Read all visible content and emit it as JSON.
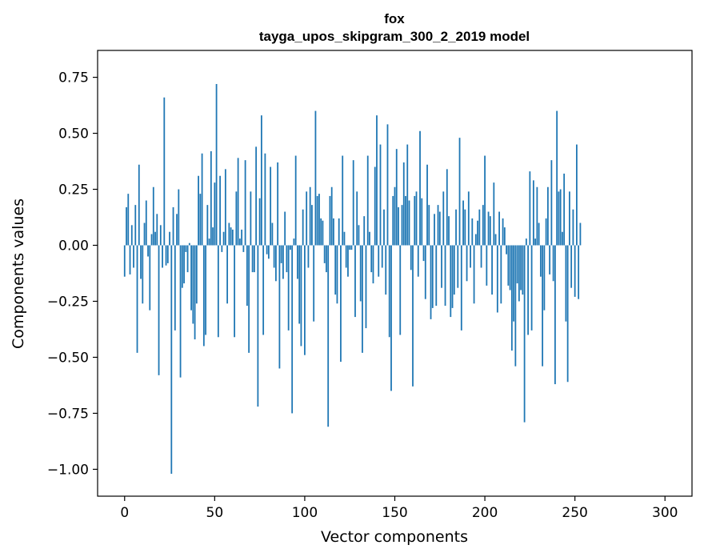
{
  "chart_data": {
    "type": "bar",
    "title": "fox",
    "subtitle": "tayga_upos_skipgram_300_2_2019 model",
    "xlabel": "Vector components",
    "ylabel": "Components values",
    "xlim": [
      -15,
      315
    ],
    "ylim": [
      -1.12,
      0.87
    ],
    "xticks": [
      0,
      50,
      100,
      150,
      200,
      250,
      300
    ],
    "xtick_labels": [
      "0",
      "50",
      "100",
      "150",
      "200",
      "250",
      "300"
    ],
    "yticks": [
      0.75,
      0.5,
      0.25,
      0.0,
      -0.25,
      -0.5,
      -0.75,
      -1.0
    ],
    "ytick_labels": [
      "0.75",
      "0.50",
      "0.25",
      "0.00",
      "−0.25",
      "−0.50",
      "−0.75",
      "−1.00"
    ],
    "bar_color": "#1f77b4",
    "grid": false,
    "values": [
      -0.14,
      0.17,
      0.23,
      -0.13,
      0.09,
      -0.1,
      0.18,
      -0.48,
      0.36,
      -0.15,
      -0.26,
      0.1,
      0.2,
      -0.05,
      -0.29,
      0.05,
      0.26,
      0.06,
      0.14,
      -0.58,
      0.09,
      -0.1,
      0.66,
      -0.09,
      -0.08,
      0.06,
      -1.02,
      0.17,
      -0.38,
      0.14,
      0.25,
      -0.59,
      -0.19,
      -0.17,
      -0.03,
      -0.12,
      0.01,
      -0.29,
      -0.35,
      -0.42,
      -0.26,
      0.31,
      0.23,
      0.41,
      -0.45,
      -0.4,
      0.18,
      0.03,
      0.42,
      0.08,
      0.28,
      0.72,
      -0.41,
      0.31,
      -0.03,
      0.06,
      0.34,
      -0.26,
      0.1,
      0.08,
      0.07,
      -0.41,
      0.24,
      0.39,
      0.03,
      0.07,
      -0.03,
      0.38,
      -0.27,
      -0.48,
      0.24,
      -0.12,
      -0.12,
      0.44,
      -0.72,
      0.21,
      0.58,
      -0.4,
      0.41,
      -0.04,
      -0.06,
      0.35,
      0.1,
      -0.1,
      -0.16,
      0.37,
      -0.55,
      -0.08,
      -0.15,
      0.15,
      -0.12,
      -0.38,
      -0.02,
      -0.75,
      0.03,
      0.4,
      -0.15,
      -0.35,
      -0.45,
      0.16,
      -0.49,
      0.24,
      -0.1,
      0.26,
      0.18,
      -0.34,
      0.6,
      0.22,
      0.23,
      0.12,
      0.11,
      -0.08,
      -0.12,
      -0.81,
      0.22,
      0.26,
      0.12,
      -0.22,
      -0.26,
      0.12,
      -0.52,
      0.4,
      0.06,
      -0.1,
      -0.14,
      -0.02,
      -0.02,
      0.38,
      -0.32,
      0.24,
      0.09,
      -0.25,
      -0.48,
      0.13,
      -0.37,
      0.4,
      0.06,
      -0.12,
      -0.17,
      0.35,
      0.58,
      -0.14,
      0.45,
      -0.1,
      0.16,
      -0.22,
      0.54,
      -0.41,
      -0.65,
      0.22,
      0.26,
      0.43,
      0.17,
      -0.4,
      0.18,
      0.37,
      0.22,
      0.45,
      0.2,
      -0.11,
      -0.63,
      0.22,
      0.24,
      -0.14,
      0.51,
      0.21,
      -0.07,
      -0.24,
      0.36,
      0.18,
      -0.33,
      -0.28,
      0.14,
      -0.27,
      0.18,
      0.15,
      -0.19,
      0.24,
      -0.27,
      0.34,
      0.13,
      -0.32,
      -0.28,
      -0.22,
      0.16,
      -0.19,
      0.48,
      -0.38,
      0.2,
      0.16,
      -0.16,
      0.24,
      -0.1,
      0.12,
      -0.26,
      0.05,
      0.11,
      0.16,
      -0.1,
      0.18,
      0.4,
      -0.18,
      0.15,
      0.13,
      -0.22,
      0.28,
      0.05,
      -0.3,
      0.15,
      -0.26,
      0.12,
      0.08,
      -0.04,
      -0.18,
      -0.2,
      -0.47,
      -0.34,
      -0.54,
      -0.17,
      -0.25,
      -0.2,
      -0.22,
      -0.79,
      0.03,
      -0.4,
      0.33,
      -0.38,
      0.29,
      0.03,
      0.26,
      0.1,
      -0.14,
      -0.54,
      -0.29,
      0.12,
      0.26,
      -0.13,
      0.38,
      -0.16,
      -0.62,
      0.6,
      0.24,
      0.25,
      0.06,
      0.32,
      -0.34,
      -0.61,
      0.24,
      -0.19,
      0.16,
      -0.23,
      0.45,
      -0.24,
      0.1
    ]
  }
}
